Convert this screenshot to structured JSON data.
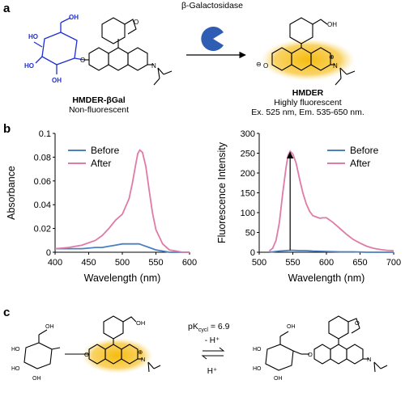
{
  "panel_labels": {
    "a": "a",
    "b": "b",
    "c": "c"
  },
  "panel_a": {
    "enzyme_label": "β-Galactosidase",
    "reactant_name": "HMDER-βGal",
    "reactant_desc": "Non-fluorescent",
    "product_name": "HMDER",
    "product_desc": "Highly fluorescent",
    "product_spec": "Ex. 525 nm, Em. 535-650 nm.",
    "atoms": {
      "ho": "HO",
      "oh": "OH",
      "o": "O",
      "n": "N",
      "minus": "⊖",
      "plus": "⊕"
    },
    "colors": {
      "sugar": "#1f2fd1",
      "pacman": "#2f5db3",
      "glow": "#f5b800"
    }
  },
  "panel_c": {
    "pk_text": "pK",
    "pk_sub": "cycl",
    "pk_value": " = 6.9",
    "forward": "- H⁺",
    "reverse": "H⁺"
  },
  "chart_data": [
    {
      "type": "line",
      "ylabel": "Absorbance",
      "xlabel": "Wavelength (nm)",
      "xlim": [
        400,
        600
      ],
      "ylim": [
        0,
        0.1
      ],
      "xticks": [
        400,
        450,
        500,
        550,
        600
      ],
      "yticks": [
        0,
        0.02,
        0.04,
        0.06,
        0.08,
        0.1
      ],
      "ytick_labels": [
        "0",
        "0.02",
        "0.04",
        "0.06",
        "0.08",
        "0.1"
      ],
      "legend_position": "top-left",
      "series": [
        {
          "name": "Before",
          "color": "#4a7fc1",
          "x": [
            400,
            420,
            440,
            460,
            470,
            480,
            490,
            500,
            510,
            520,
            525,
            530,
            540,
            550,
            560,
            570,
            580,
            590,
            600
          ],
          "y": [
            0.003,
            0.003,
            0.003,
            0.004,
            0.004,
            0.005,
            0.006,
            0.007,
            0.007,
            0.007,
            0.007,
            0.006,
            0.004,
            0.002,
            0.001,
            0,
            0,
            0,
            0
          ]
        },
        {
          "name": "After",
          "color": "#e07aa6",
          "x": [
            400,
            420,
            440,
            460,
            470,
            480,
            490,
            500,
            510,
            515,
            520,
            523,
            526,
            530,
            535,
            540,
            545,
            550,
            560,
            570,
            580,
            590,
            600
          ],
          "y": [
            0.003,
            0.004,
            0.006,
            0.01,
            0.014,
            0.02,
            0.027,
            0.032,
            0.045,
            0.058,
            0.074,
            0.083,
            0.086,
            0.084,
            0.072,
            0.052,
            0.033,
            0.019,
            0.007,
            0.002,
            0.001,
            0,
            0
          ]
        }
      ]
    },
    {
      "type": "line",
      "ylabel": "Fluorescence Intensity",
      "xlabel": "Wavelength (nm)",
      "xlim": [
        500,
        700
      ],
      "ylim": [
        0,
        300
      ],
      "xticks": [
        500,
        550,
        600,
        650,
        700
      ],
      "yticks": [
        0,
        50,
        100,
        150,
        200,
        250,
        300
      ],
      "ytick_labels": [
        "0",
        "50",
        "100",
        "150",
        "200",
        "250",
        "300"
      ],
      "legend_position": "top-right",
      "annotation": {
        "type": "arrow",
        "x": 546,
        "y_from": 5,
        "y_to": 252
      },
      "series": [
        {
          "name": "Before",
          "color": "#4a7fc1",
          "x": [
            515,
            520,
            530,
            540,
            546,
            550,
            560,
            570,
            580,
            600,
            620,
            640,
            660,
            680,
            700
          ],
          "y": [
            0,
            1,
            3,
            4,
            5,
            5,
            4,
            4,
            3,
            2,
            1,
            1,
            0,
            0,
            0
          ]
        },
        {
          "name": "After",
          "color": "#e07aa6",
          "x": [
            515,
            520,
            525,
            530,
            535,
            540,
            543,
            546,
            550,
            555,
            560,
            565,
            570,
            575,
            580,
            590,
            595,
            600,
            610,
            620,
            630,
            640,
            650,
            660,
            670,
            680,
            690,
            700
          ],
          "y": [
            3,
            10,
            30,
            75,
            150,
            215,
            245,
            255,
            248,
            225,
            185,
            150,
            122,
            103,
            92,
            86,
            87,
            87,
            75,
            60,
            45,
            32,
            23,
            15,
            10,
            7,
            5,
            4
          ]
        }
      ]
    }
  ]
}
